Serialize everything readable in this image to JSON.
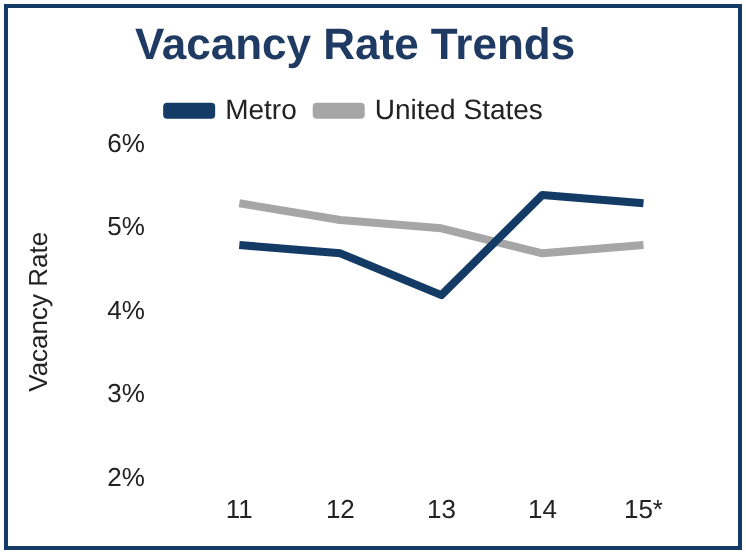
{
  "chart_data": {
    "type": "line",
    "title": "Vacancy Rate Trends",
    "ylabel": "Vacancy Rate",
    "categories": [
      "11",
      "12",
      "13",
      "14",
      "15*"
    ],
    "series": [
      {
        "name": "Metro",
        "color": "#143a66",
        "values": [
          4.8,
          4.7,
          4.2,
          5.4,
          5.3
        ]
      },
      {
        "name": "United States",
        "color": "#a6a6a6",
        "values": [
          5.3,
          5.1,
          5.0,
          4.7,
          4.8
        ]
      }
    ],
    "ylim": [
      2,
      6
    ],
    "yticks": [
      {
        "value": 2,
        "label": "2%"
      },
      {
        "value": 3,
        "label": "3%"
      },
      {
        "value": 4,
        "label": "4%"
      },
      {
        "value": 5,
        "label": "5%"
      },
      {
        "value": 6,
        "label": "6%"
      }
    ],
    "grid": false,
    "legend": "top",
    "marker": "none",
    "line_style": "solid"
  }
}
